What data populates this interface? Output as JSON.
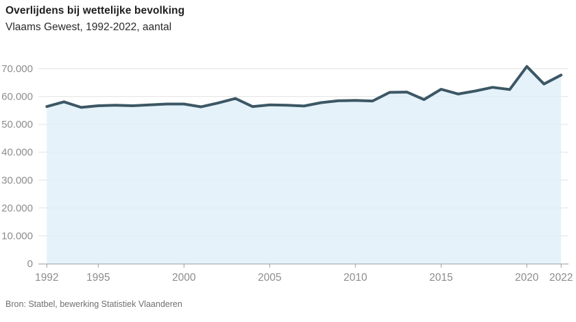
{
  "header": {
    "title": "Overlijdens bij wettelijke bevolking",
    "subtitle": "Vlaams Gewest, 1992-2022, aantal"
  },
  "footer": {
    "source": "Bron: Statbel, bewerking Statistiek Vlaanderen"
  },
  "chart_data": {
    "type": "area",
    "title": "Overlijdens bij wettelijke bevolking",
    "subtitle": "Vlaams Gewest, 1992-2022, aantal",
    "series_name": "Overlijdens",
    "x": [
      1992,
      1993,
      1994,
      1995,
      1996,
      1997,
      1998,
      1999,
      2000,
      2001,
      2002,
      2003,
      2004,
      2005,
      2006,
      2007,
      2008,
      2009,
      2010,
      2011,
      2012,
      2013,
      2014,
      2015,
      2016,
      2017,
      2018,
      2019,
      2020,
      2021,
      2022
    ],
    "values": [
      56400,
      58100,
      56100,
      56700,
      56900,
      56700,
      57000,
      57300,
      57300,
      56300,
      57700,
      59300,
      56400,
      57000,
      56900,
      56600,
      57800,
      58500,
      58600,
      58400,
      61500,
      61600,
      58900,
      62600,
      60900,
      62000,
      63300,
      62500,
      70800,
      64500,
      67700
    ],
    "xlabel": "",
    "ylabel": "aantal",
    "ylim": [
      0,
      70000
    ],
    "ytick_step": 10000,
    "ytick_values": [
      0,
      10000,
      20000,
      30000,
      40000,
      50000,
      60000,
      70000
    ],
    "ytick_labels": [
      "0",
      "10.000",
      "20.000",
      "30.000",
      "40.000",
      "50.000",
      "60.000",
      "70.000"
    ],
    "xtick_values": [
      1992,
      1995,
      2000,
      2005,
      2010,
      2015,
      2020,
      2022
    ],
    "xtick_labels": [
      "1992",
      "1995",
      "2000",
      "2005",
      "2010",
      "2015",
      "2020",
      "2022"
    ],
    "grid": "horizontal",
    "legend": "none",
    "colors": {
      "line": "#3c5765",
      "fill": "#dfeff8",
      "gridline": "#e2e2e2",
      "axis": "#9e9e9e",
      "tick_label": "#8c8c8c",
      "title": "#1e1e1e",
      "source": "#6f6f6f"
    }
  }
}
